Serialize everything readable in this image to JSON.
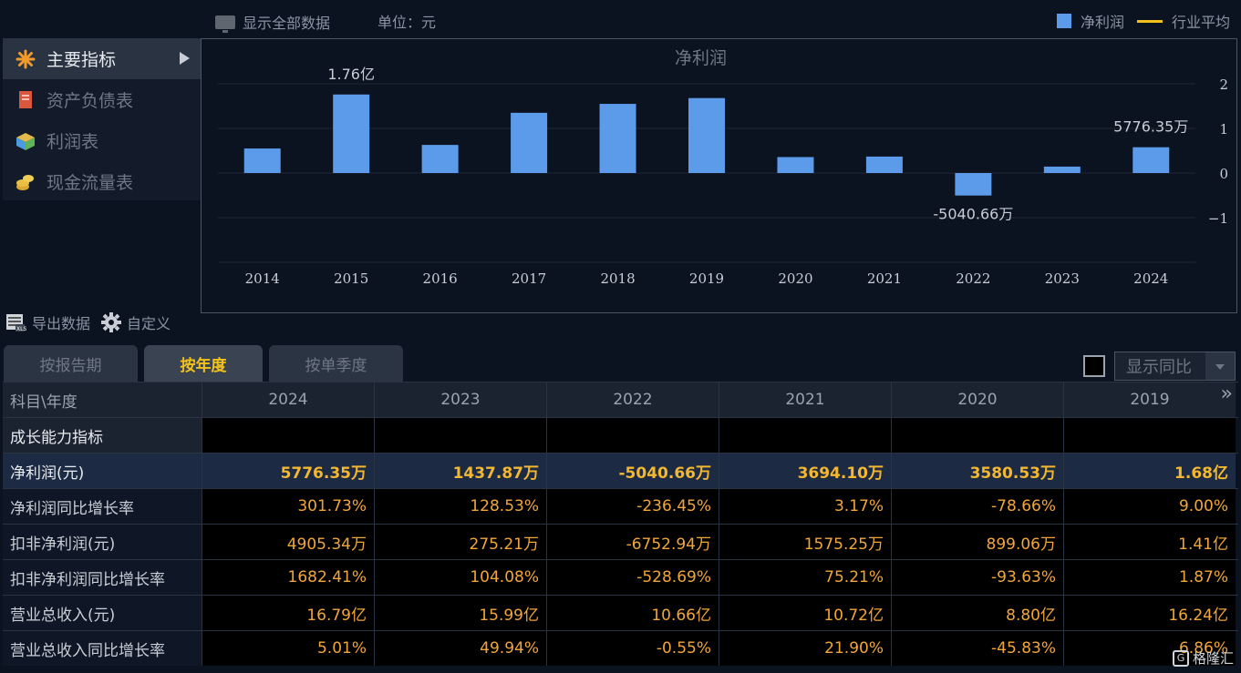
{
  "toolbar": {
    "show_all": "显示全部数据",
    "unit": "单位：元"
  },
  "legend": {
    "net_profit": "净利润",
    "industry_avg": "行业平均",
    "bar_color": "#5b9bea",
    "avg_color": "#f3c21a"
  },
  "nav": {
    "items": [
      {
        "label": "主要指标",
        "icon": "asterisk-icon",
        "active": true
      },
      {
        "label": "资产负债表",
        "icon": "document-icon"
      },
      {
        "label": "利润表",
        "icon": "pie-cube-icon"
      },
      {
        "label": "现金流量表",
        "icon": "coins-icon"
      }
    ]
  },
  "chart_data": {
    "type": "bar",
    "title": "净利润",
    "categories": [
      "2014",
      "2015",
      "2016",
      "2017",
      "2018",
      "2019",
      "2020",
      "2021",
      "2022",
      "2023",
      "2024"
    ],
    "values": [
      0.55,
      1.76,
      0.63,
      1.35,
      1.55,
      1.68,
      0.358,
      0.369,
      -0.504,
      0.144,
      0.578
    ],
    "ylim": [
      -2,
      2
    ],
    "yticks": [
      "2",
      "1",
      "0",
      "−1"
    ],
    "annotations": [
      {
        "index": 1,
        "text": "1.76亿"
      },
      {
        "index": 8,
        "text": "-5040.66万"
      },
      {
        "index": 10,
        "text": "5776.35万"
      }
    ]
  },
  "tools": {
    "export": "导出数据",
    "customize": "自定义"
  },
  "tabs": [
    {
      "label": "按报告期"
    },
    {
      "label": "按年度",
      "active": true
    },
    {
      "label": "按单季度"
    }
  ],
  "yoy_select": {
    "label": "显示同比"
  },
  "table": {
    "header": [
      "科目\\年度",
      "2024",
      "2023",
      "2022",
      "2021",
      "2020",
      "2019"
    ],
    "section": "成长能力指标",
    "rows": [
      {
        "label": "净利润(元)",
        "values": [
          "5776.35万",
          "1437.87万",
          "-5040.66万",
          "3694.10万",
          "3580.53万",
          "1.68亿"
        ],
        "highlight": true
      },
      {
        "label": "净利润同比增长率",
        "values": [
          "301.73%",
          "128.53%",
          "-236.45%",
          "3.17%",
          "-78.66%",
          "9.00%"
        ]
      },
      {
        "label": "扣非净利润(元)",
        "values": [
          "4905.34万",
          "275.21万",
          "-6752.94万",
          "1575.25万",
          "899.06万",
          "1.41亿"
        ]
      },
      {
        "label": "扣非净利润同比增长率",
        "values": [
          "1682.41%",
          "104.08%",
          "-528.69%",
          "75.21%",
          "-93.63%",
          "1.87%"
        ]
      },
      {
        "label": "营业总收入(元)",
        "values": [
          "16.79亿",
          "15.99亿",
          "10.66亿",
          "10.72亿",
          "8.80亿",
          "16.24亿"
        ]
      },
      {
        "label": "营业总收入同比增长率",
        "values": [
          "5.01%",
          "49.94%",
          "-0.55%",
          "21.90%",
          "-45.83%",
          "6.86%"
        ]
      }
    ]
  },
  "watermark": "格隆汇"
}
